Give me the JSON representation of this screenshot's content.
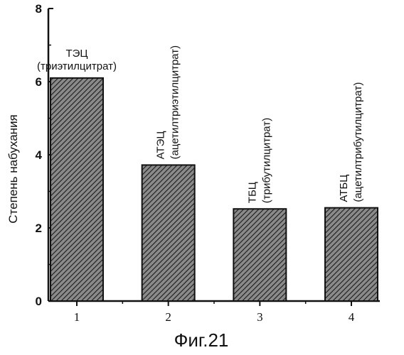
{
  "chart_data": {
    "type": "bar",
    "categories": [
      "1",
      "2",
      "3",
      "4"
    ],
    "values": [
      6.1,
      3.72,
      2.52,
      2.55
    ],
    "ylabel": "Степень набухания",
    "xlabel": "",
    "ylim": [
      0,
      8
    ],
    "yticks": [
      0,
      2,
      4,
      6,
      8
    ],
    "grid": false,
    "bar_fill": "hatched",
    "annotations": [
      {
        "name": "ТЭЦ",
        "full": "(триэтилцитрат)",
        "orientation": "horizontal"
      },
      {
        "name": "АТЭЦ",
        "full": "(ацетилтриэтилцитрат)",
        "orientation": "vertical"
      },
      {
        "name": "ТБЦ",
        "full": "(трибутилцитрат)",
        "orientation": "vertical"
      },
      {
        "name": "АТБЦ",
        "full": "(ацетилтрибутилцитрат)",
        "orientation": "vertical"
      }
    ]
  },
  "caption": "Фиг.21",
  "colors": {
    "ink": "#111111",
    "bar_fill": "#7a7a7a",
    "background": "#ffffff"
  }
}
